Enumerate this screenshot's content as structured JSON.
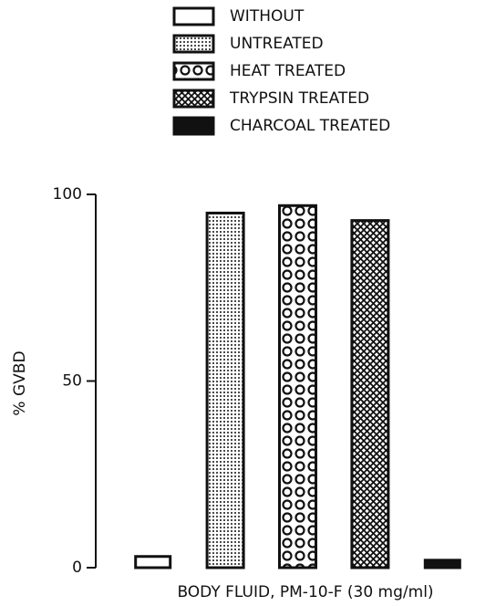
{
  "chart_data": {
    "type": "bar",
    "y_label": "% GVBD",
    "x_label": "BODY FLUID, PM-10-F (30 mg/ml)",
    "categories": [
      null
    ],
    "series": [
      {
        "name": "WITHOUT",
        "color": "#111111",
        "pattern": "none",
        "values": [
          3
        ]
      },
      {
        "name": "UNTREATED",
        "color": "#111111",
        "pattern": "dots",
        "values": [
          95
        ]
      },
      {
        "name": "HEAT TREATED",
        "color": "#111111",
        "pattern": "circles",
        "values": [
          97
        ]
      },
      {
        "name": "TRYPSIN TREATED",
        "color": "#111111",
        "pattern": "crosshatch",
        "values": [
          93
        ]
      },
      {
        "name": "CHARCOAL TREATED",
        "color": "#111111",
        "pattern": "solid",
        "values": [
          2
        ]
      }
    ],
    "ylim": [
      0,
      100
    ],
    "yticks": [
      0,
      50,
      100
    ],
    "grid": false
  }
}
